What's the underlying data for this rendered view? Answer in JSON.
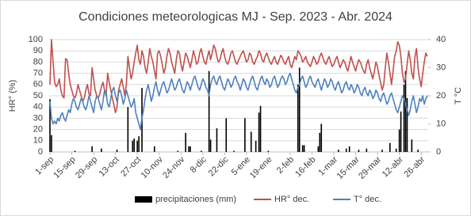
{
  "chart_data": {
    "type": "combo",
    "title": "Condiciones meteorologicas MJ - Sep. 2023 - Abr. 2024",
    "y_label": "HR° (%)",
    "y2_label": "T °C",
    "categories": [
      "1-sep",
      null,
      null,
      null,
      null,
      null,
      null,
      null,
      null,
      null,
      null,
      null,
      null,
      null,
      "15-sep",
      null,
      null,
      null,
      null,
      null,
      null,
      null,
      null,
      null,
      null,
      null,
      null,
      null,
      "29-sep",
      null,
      null,
      null,
      null,
      null,
      null,
      null,
      null,
      null,
      null,
      null,
      null,
      null,
      "13-oct",
      null,
      null,
      null,
      null,
      null,
      null,
      null,
      null,
      null,
      null,
      null,
      null,
      null,
      "27-oct",
      null,
      null,
      null,
      null,
      null,
      null,
      null,
      null,
      null,
      null,
      null,
      null,
      null,
      "10-nov",
      null,
      null,
      null,
      null,
      null,
      null,
      null,
      null,
      null,
      null,
      null,
      null,
      null,
      "24-nov",
      null,
      null,
      null,
      null,
      null,
      null,
      null,
      null,
      null,
      null,
      null,
      null,
      null,
      "8-dic",
      null,
      null,
      null,
      null,
      null,
      null,
      null,
      null,
      null,
      null,
      null,
      null,
      null,
      "22-dic",
      null,
      null,
      null,
      null,
      null,
      null,
      null,
      null,
      null,
      null,
      null,
      null,
      null,
      "5-ene",
      null,
      null,
      null,
      null,
      null,
      null,
      null,
      null,
      null,
      null,
      null,
      null,
      null,
      "19-ene",
      null,
      null,
      null,
      null,
      null,
      null,
      null,
      null,
      null,
      null,
      null,
      null,
      null,
      "2-feb",
      null,
      null,
      null,
      null,
      null,
      null,
      null,
      null,
      null,
      null,
      null,
      null,
      null,
      "16-feb",
      null,
      null,
      null,
      null,
      null,
      null,
      null,
      null,
      null,
      null,
      null,
      null,
      null,
      "1-mar",
      null,
      null,
      null,
      null,
      null,
      null,
      null,
      null,
      null,
      null,
      null,
      null,
      null,
      "15-mar",
      null,
      null,
      null,
      null,
      null,
      null,
      null,
      null,
      null,
      null,
      null,
      null,
      null,
      "29-mar",
      null,
      null,
      null,
      null,
      null,
      null,
      null,
      null,
      null,
      null,
      null,
      null,
      null,
      "12-abr",
      null,
      null,
      null,
      null,
      null,
      null,
      null,
      null,
      null,
      null,
      null,
      null,
      null,
      "26-abr",
      null,
      null,
      null,
      null
    ],
    "series": [
      {
        "name": "precipitaciones (mm)",
        "type": "bar",
        "color": "#000000",
        "values": [
          47,
          15,
          0,
          0,
          0,
          0,
          0,
          0,
          0,
          0,
          0,
          0,
          0,
          0,
          0,
          0,
          1,
          0,
          0,
          0,
          0,
          0,
          0,
          0,
          0,
          0,
          0,
          5,
          0,
          0,
          0,
          0,
          0,
          3,
          0,
          0,
          0,
          0,
          0,
          0,
          0,
          0,
          0,
          2,
          0,
          0,
          0,
          0,
          0,
          0,
          40,
          0,
          0,
          10,
          12,
          0,
          10,
          14,
          0,
          57,
          0,
          0,
          0,
          0,
          0,
          0,
          0,
          5,
          0,
          0,
          0,
          0,
          0,
          0,
          0,
          0,
          0,
          0,
          0,
          0,
          0,
          0,
          1,
          0,
          0,
          0,
          0,
          17,
          0,
          5,
          5,
          0,
          0,
          0,
          0,
          0,
          0,
          1,
          0,
          0,
          0,
          0,
          72,
          11,
          0,
          0,
          0,
          21,
          0,
          0,
          0,
          0,
          0,
          30,
          0,
          0,
          0,
          0,
          1,
          0,
          0,
          0,
          0,
          0,
          0,
          30,
          0,
          0,
          0,
          18,
          0,
          0,
          10,
          0,
          35,
          41,
          0,
          0,
          0,
          0,
          1,
          0,
          0,
          0,
          0,
          0,
          0,
          0,
          0,
          0,
          0,
          0,
          0,
          0,
          0,
          0,
          0,
          0,
          0,
          60,
          75,
          0,
          6,
          6,
          0,
          0,
          0,
          0,
          0,
          0,
          0,
          0,
          5,
          17,
          25,
          0,
          0,
          0,
          0,
          0,
          0,
          0,
          0,
          0,
          0,
          2,
          0,
          0,
          0,
          0,
          3,
          0,
          5,
          0,
          0,
          0,
          0,
          0,
          2,
          0,
          0,
          0,
          0,
          3,
          0,
          0,
          0,
          0,
          0,
          0,
          0,
          0,
          0,
          2,
          0,
          0,
          0,
          0,
          8,
          0,
          0,
          0,
          3,
          0,
          20,
          36,
          0,
          60,
          72,
          48,
          0,
          0,
          11,
          0,
          0,
          0,
          2,
          0,
          0,
          0,
          0,
          0,
          0
        ]
      },
      {
        "name": "HR° dec.",
        "type": "line",
        "color": "#c0504d",
        "values": [
          60,
          100,
          80,
          62,
          58,
          60,
          65,
          55,
          50,
          48,
          83,
          82,
          70,
          60,
          55,
          50,
          48,
          52,
          60,
          55,
          50,
          45,
          48,
          55,
          60,
          52,
          50,
          75,
          65,
          55,
          50,
          48,
          52,
          58,
          62,
          55,
          50,
          70,
          62,
          55,
          48,
          42,
          35,
          40,
          55,
          60,
          65,
          58,
          50,
          60,
          85,
          75,
          65,
          70,
          80,
          88,
          95,
          82,
          78,
          90,
          85,
          75,
          70,
          80,
          92,
          85,
          80,
          72,
          65,
          88,
          90,
          85,
          78,
          70,
          75,
          85,
          92,
          88,
          80,
          75,
          70,
          82,
          90,
          88,
          78,
          72,
          80,
          88,
          85,
          80,
          75,
          82,
          90,
          85,
          78,
          80,
          88,
          92,
          85,
          80,
          78,
          85,
          90,
          82,
          88,
          95,
          92,
          85,
          80,
          82,
          88,
          92,
          85,
          80,
          78,
          82,
          88,
          90,
          85,
          80,
          78,
          82,
          85,
          88,
          90,
          85,
          80,
          82,
          88,
          86,
          80,
          78,
          82,
          85,
          90,
          88,
          82,
          80,
          85,
          88,
          84,
          80,
          78,
          82,
          85,
          80,
          78,
          82,
          86,
          84,
          80,
          78,
          82,
          85,
          78,
          75,
          80,
          85,
          82,
          90,
          88,
          85,
          80,
          82,
          85,
          80,
          78,
          76,
          80,
          85,
          82,
          78,
          80,
          85,
          88,
          84,
          80,
          78,
          82,
          85,
          80,
          76,
          78,
          82,
          85,
          80,
          75,
          78,
          82,
          80,
          75,
          72,
          78,
          85,
          80,
          76,
          72,
          78,
          82,
          80,
          76,
          72,
          70,
          78,
          82,
          75,
          70,
          65,
          72,
          80,
          76,
          68,
          62,
          55,
          60,
          75,
          88,
          80,
          70,
          60,
          72,
          85,
          90,
          98,
          95,
          85,
          70,
          62,
          65,
          78,
          90,
          82,
          70,
          65,
          85,
          92,
          75,
          65,
          58,
          70,
          80,
          88,
          85
        ]
      },
      {
        "name": "T° dec.",
        "type": "line",
        "axis": "y2",
        "color": "#4f81bd",
        "values": [
          18,
          12,
          10,
          11,
          10,
          12,
          11,
          13,
          14,
          12,
          11,
          13,
          15,
          14,
          17,
          19,
          18,
          16,
          15,
          17,
          19,
          18,
          16,
          15,
          17,
          20,
          18,
          16,
          14,
          18,
          20,
          19,
          17,
          15,
          18,
          22,
          21,
          17,
          16,
          19,
          22,
          23,
          20,
          18,
          21,
          22,
          20,
          17,
          19,
          22,
          20,
          18,
          16,
          17,
          19,
          14,
          12,
          10,
          8,
          12,
          15,
          19,
          22,
          24,
          21,
          18,
          20,
          23,
          25,
          22,
          20,
          22,
          24,
          25,
          23,
          21,
          22,
          24,
          26,
          24,
          22,
          23,
          25,
          26,
          24,
          22,
          21,
          23,
          25,
          24,
          22,
          24,
          26,
          27,
          25,
          23,
          22,
          24,
          26,
          25,
          23,
          22,
          20,
          24,
          26,
          27,
          25,
          24,
          26,
          27,
          25,
          23,
          22,
          24,
          26,
          25,
          23,
          24,
          26,
          27,
          25,
          24,
          22,
          24,
          26,
          25,
          23,
          22,
          24,
          26,
          27,
          25,
          23,
          22,
          24,
          26,
          27,
          25,
          24,
          26,
          25,
          23,
          24,
          26,
          27,
          25,
          23,
          24,
          26,
          27,
          26,
          24,
          25,
          27,
          28,
          26,
          24,
          22,
          21,
          23,
          24,
          26,
          27,
          25,
          23,
          24,
          26,
          27,
          25,
          24,
          23,
          25,
          26,
          24,
          22,
          24,
          26,
          25,
          23,
          24,
          26,
          25,
          23,
          22,
          24,
          25,
          23,
          21,
          22,
          24,
          25,
          23,
          22,
          24,
          23,
          21,
          22,
          24,
          23,
          21,
          20,
          22,
          23,
          21,
          20,
          22,
          21,
          19,
          20,
          22,
          21,
          19,
          18,
          20,
          21,
          19,
          17,
          18,
          20,
          21,
          19,
          17,
          15,
          14,
          16,
          18,
          20,
          19,
          17,
          15,
          13,
          15,
          18,
          20,
          17,
          14,
          16,
          19,
          18,
          20,
          17,
          19,
          20
        ]
      }
    ],
    "ylim": [
      0,
      100
    ],
    "yticks": [
      0,
      10,
      20,
      30,
      40,
      50,
      60,
      70,
      80,
      90,
      100
    ],
    "y2lim": [
      0,
      40
    ],
    "y2ticks": [
      0,
      10,
      20,
      30,
      40
    ],
    "grid": true,
    "legend": "bottom"
  }
}
